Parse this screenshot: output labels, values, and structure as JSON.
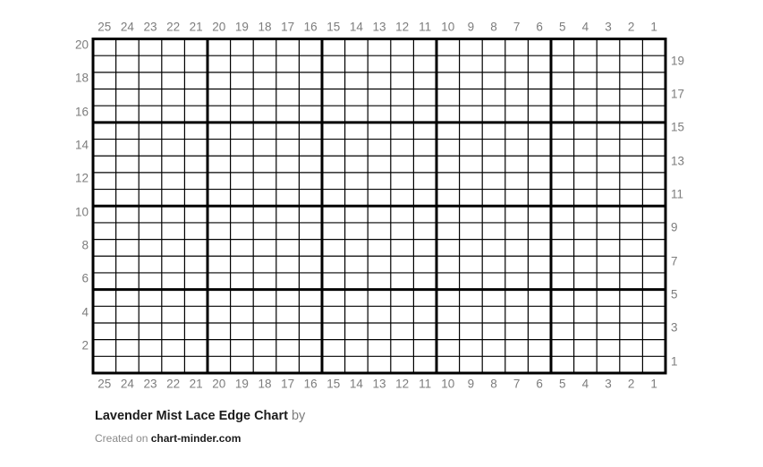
{
  "footer": {
    "title": "Lavender Mist Lace Edge Chart",
    "by_label": "by",
    "credit_prefix": "Created on",
    "credit_site": "chart-minder.com"
  },
  "colors": {
    "grid_line": "#000000",
    "label_text": "#7d7d7d",
    "title_text": "#1c1c1c",
    "background": "#ffffff"
  },
  "chart_data": {
    "type": "table",
    "title": "Lavender Mist Lace Edge Chart",
    "subtitle": "Created on chart-minder.com",
    "grid": {
      "columns": 25,
      "rows": 20
    },
    "major_grid_interval": 5,
    "column_labels": [
      "25",
      "24",
      "23",
      "22",
      "21",
      "20",
      "19",
      "18",
      "17",
      "16",
      "15",
      "14",
      "13",
      "12",
      "11",
      "10",
      "9",
      "8",
      "7",
      "6",
      "5",
      "4",
      "3",
      "2",
      "1"
    ],
    "row_labels_left": [
      "20",
      "18",
      "16",
      "14",
      "12",
      "10",
      "8",
      "6",
      "4",
      "2"
    ],
    "row_labels_right": [
      "19",
      "17",
      "15",
      "13",
      "11",
      "9",
      "7",
      "5",
      "3",
      "1"
    ],
    "cells": "empty",
    "notes": "Empty 25-stitch by 20-row knitting chart grid; thick border lines every 5 stitches and every 5 rows; no stitch symbols present"
  }
}
